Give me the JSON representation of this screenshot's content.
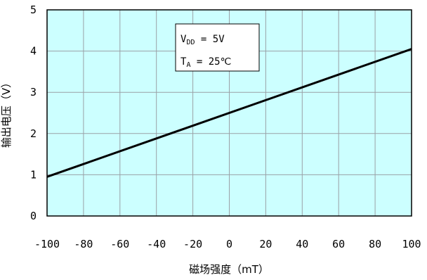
{
  "chart_data": {
    "type": "line",
    "title": "",
    "xlabel": "磁场强度（mT）",
    "ylabel": "输出电压（V）",
    "xlim": [
      -100,
      100
    ],
    "ylim": [
      0,
      5
    ],
    "x_ticks": [
      "-100",
      "-80",
      "-60",
      "-40",
      "-20",
      "0",
      "20",
      "40",
      "60",
      "80",
      "100"
    ],
    "y_ticks": [
      "0",
      "1",
      "2",
      "3",
      "4",
      "5"
    ],
    "grid": true,
    "background_color": "#ccffff",
    "grid_color": "#9aa0a6",
    "line_color": "#000000",
    "series": [
      {
        "x": [
          -100,
          100
        ],
        "y": [
          0.95,
          4.05
        ]
      }
    ],
    "annotation": {
      "vdd_label": "V",
      "vdd_sub": "DD",
      "vdd_value": " = 5V",
      "ta_label": "T",
      "ta_sub": "A",
      "ta_value": " = 25℃"
    }
  }
}
